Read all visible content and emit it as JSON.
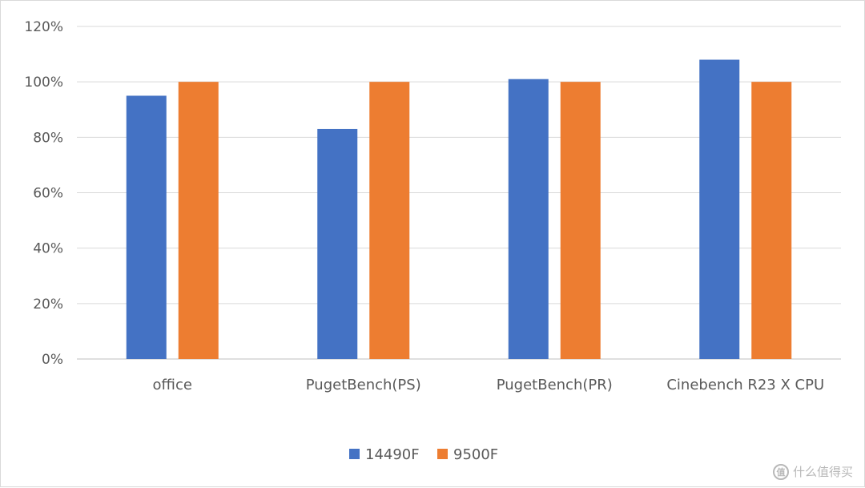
{
  "chart_data": {
    "type": "bar",
    "categories": [
      "office",
      "PugetBench(PS)",
      "PugetBench(PR)",
      "Cinebench R23 X CPU"
    ],
    "series": [
      {
        "name": "14490F",
        "values": [
          95,
          83,
          101,
          108
        ],
        "color": "#4472c4"
      },
      {
        "name": "9500F",
        "values": [
          100,
          100,
          100,
          100
        ],
        "color": "#ed7d31"
      }
    ],
    "yticks": [
      "0%",
      "20%",
      "40%",
      "60%",
      "80%",
      "100%",
      "120%"
    ],
    "ylim": [
      0,
      120
    ],
    "grid": true,
    "legend_position": "bottom",
    "title": "",
    "xlabel": "",
    "ylabel": ""
  },
  "watermark": {
    "text": "什么值得买",
    "icon": "zhi-badge-icon",
    "badge": "值"
  }
}
